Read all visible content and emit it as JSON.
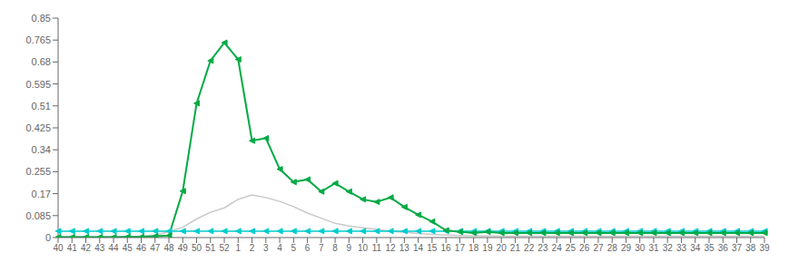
{
  "chart_data": {
    "type": "line",
    "categories": [
      "40",
      "41",
      "42",
      "43",
      "44",
      "45",
      "46",
      "47",
      "48",
      "49",
      "50",
      "51",
      "52",
      "1",
      "2",
      "3",
      "4",
      "5",
      "6",
      "7",
      "8",
      "9",
      "10",
      "11",
      "12",
      "13",
      "14",
      "15",
      "16",
      "17",
      "18",
      "19",
      "20",
      "21",
      "22",
      "23",
      "24",
      "25",
      "26",
      "27",
      "28",
      "29",
      "30",
      "31",
      "32",
      "33",
      "34",
      "35",
      "36",
      "37",
      "38",
      "39"
    ],
    "series": [
      {
        "color": "#C8C8C8",
        "values": [
          0.003,
          0.003,
          0.003,
          0.003,
          0.003,
          0.003,
          0.005,
          0.01,
          0.022,
          0.04,
          0.072,
          0.098,
          0.115,
          0.148,
          0.165,
          0.155,
          0.14,
          0.12,
          0.095,
          0.075,
          0.055,
          0.045,
          0.038,
          0.032,
          0.025,
          0.02,
          0.016,
          0.012,
          0.01,
          0.008,
          0.007,
          0.006,
          0.005,
          0.005,
          0.005,
          0.005,
          0.005,
          0.005,
          0.005,
          0.005,
          0.005,
          0.005,
          0.005,
          0.005,
          0.005,
          0.005,
          0.005,
          0.005,
          0.005,
          0.005,
          0.005,
          0.005
        ]
      },
      {
        "color": "#00CCCC",
        "marker": "triangle_left",
        "values": [
          0.025,
          0.025,
          0.025,
          0.025,
          0.025,
          0.025,
          0.025,
          0.025,
          0.025,
          0.025,
          0.025,
          0.025,
          0.025,
          0.025,
          0.025,
          0.025,
          0.025,
          0.025,
          0.025,
          0.025,
          0.025,
          0.025,
          0.025,
          0.025,
          0.025,
          0.025,
          0.025,
          0.025,
          0.025,
          0.025,
          0.025,
          0.025,
          0.025,
          0.025,
          0.025,
          0.025,
          0.025,
          0.025,
          0.025,
          0.025,
          0.025,
          0.025,
          0.025,
          0.025,
          0.025,
          0.025,
          0.025,
          0.025,
          0.025,
          0.025,
          0.025,
          0.025
        ]
      },
      {
        "color": "#00AA44",
        "marker": "triangle_left",
        "values": [
          0.002,
          0.002,
          0.002,
          0.002,
          0.002,
          0.003,
          0.003,
          0.005,
          0.008,
          0.18,
          0.52,
          0.685,
          0.755,
          0.69,
          0.375,
          0.385,
          0.265,
          0.215,
          0.225,
          0.178,
          0.21,
          0.178,
          0.148,
          0.138,
          0.155,
          0.118,
          0.088,
          0.062,
          0.028,
          0.022,
          0.018,
          0.022,
          0.018,
          0.018,
          0.018,
          0.018,
          0.018,
          0.018,
          0.018,
          0.018,
          0.018,
          0.018,
          0.018,
          0.018,
          0.018,
          0.018,
          0.018,
          0.018,
          0.018,
          0.018,
          0.018,
          0.018
        ]
      }
    ],
    "ylim": [
      0,
      0.85
    ],
    "yticks": [
      0,
      0.085,
      0.17,
      0.255,
      0.34,
      0.425,
      0.51,
      0.595,
      0.68,
      0.765,
      0.85
    ],
    "grid": false
  }
}
